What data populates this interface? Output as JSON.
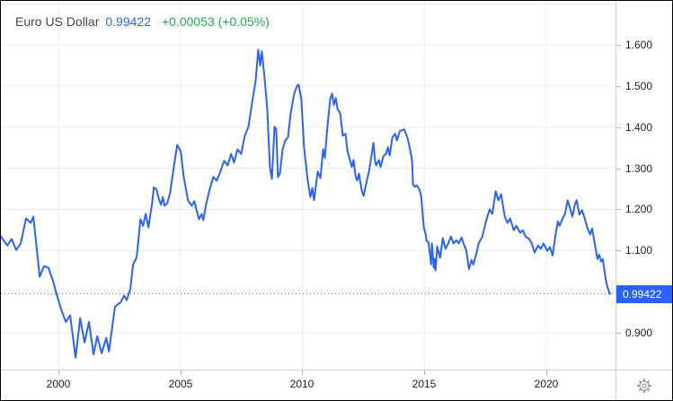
{
  "header": {
    "symbol": "Euro US Dollar",
    "price": "0.99422",
    "change": "+0.00053 (+0.05%)"
  },
  "colors": {
    "line_blue": "#2962FF",
    "price_text_blue": "#2962FF",
    "positive_green": "#22A94E",
    "grid": "#ECECEC",
    "axis_line": "#D1D1D1",
    "tick": "#B2B2B2",
    "axis_text": "#1b1f27",
    "badge_bg": "#2962FF",
    "badge_text": "#FFFFFF",
    "gear_gray": "#A0A3A8",
    "border_black": "#000000"
  },
  "icons": {
    "settings": "gear-icon"
  },
  "chart_data": {
    "type": "line",
    "title": "Euro US Dollar",
    "xlabel": "",
    "ylabel": "",
    "legend": "none",
    "grid": "on",
    "xlim": [
      1997.64,
      2022.84
    ],
    "ylim": [
      0.81,
      1.7074
    ],
    "grid_x": [
      2000,
      2005,
      2010,
      2015,
      2020
    ],
    "grid_y": [
      0.9,
      1.0,
      1.1,
      1.2,
      1.3,
      1.4,
      1.5,
      1.6,
      1.7
    ],
    "x_ticks": [
      {
        "label": "2000",
        "value": 2000
      },
      {
        "label": "2005",
        "value": 2005
      },
      {
        "label": "2010",
        "value": 2010
      },
      {
        "label": "2015",
        "value": 2015
      },
      {
        "label": "2020",
        "value": 2020
      }
    ],
    "y_ticks": [
      {
        "label": "1.600",
        "value": 1.6
      },
      {
        "label": "1.500",
        "value": 1.5
      },
      {
        "label": "1.400",
        "value": 1.4
      },
      {
        "label": "1.300",
        "value": 1.3
      },
      {
        "label": "1.200",
        "value": 1.2
      },
      {
        "label": "1.100",
        "value": 1.1
      },
      {
        "label": "0.900",
        "value": 0.9
      }
    ],
    "price_marker": {
      "label": "0.99422",
      "value": 0.99422,
      "style": "dotted"
    },
    "series": [
      {
        "name": "EUR/USD",
        "color": "#2962FF",
        "points": [
          [
            1997.64,
            1.134
          ],
          [
            1997.9,
            1.112
          ],
          [
            1998.08,
            1.128
          ],
          [
            1998.27,
            1.101
          ],
          [
            1998.45,
            1.117
          ],
          [
            1998.67,
            1.178
          ],
          [
            1998.86,
            1.167
          ],
          [
            1998.97,
            1.182
          ],
          [
            1999.23,
            1.036
          ],
          [
            1999.41,
            1.062
          ],
          [
            1999.59,
            1.058
          ],
          [
            1999.78,
            1.025
          ],
          [
            1999.93,
            0.992
          ],
          [
            2000.11,
            0.957
          ],
          [
            2000.3,
            0.926
          ],
          [
            2000.48,
            0.942
          ],
          [
            2000.7,
            0.839
          ],
          [
            2000.89,
            0.935
          ],
          [
            2001.07,
            0.876
          ],
          [
            2001.25,
            0.926
          ],
          [
            2001.44,
            0.847
          ],
          [
            2001.59,
            0.891
          ],
          [
            2001.77,
            0.85
          ],
          [
            2001.96,
            0.887
          ],
          [
            2002.07,
            0.854
          ],
          [
            2002.32,
            0.963
          ],
          [
            2002.55,
            0.974
          ],
          [
            2002.69,
            0.99
          ],
          [
            2002.8,
            0.979
          ],
          [
            2002.95,
            1.007
          ],
          [
            2003.06,
            1.066
          ],
          [
            2003.21,
            1.084
          ],
          [
            2003.36,
            1.176
          ],
          [
            2003.47,
            1.16
          ],
          [
            2003.58,
            1.189
          ],
          [
            2003.69,
            1.156
          ],
          [
            2003.84,
            1.215
          ],
          [
            2003.91,
            1.254
          ],
          [
            2004.02,
            1.248
          ],
          [
            2004.13,
            1.222
          ],
          [
            2004.21,
            1.211
          ],
          [
            2004.28,
            1.23
          ],
          [
            2004.35,
            1.209
          ],
          [
            2004.46,
            1.215
          ],
          [
            2004.58,
            1.241
          ],
          [
            2004.72,
            1.3
          ],
          [
            2004.87,
            1.357
          ],
          [
            2005.02,
            1.34
          ],
          [
            2005.13,
            1.281
          ],
          [
            2005.31,
            1.222
          ],
          [
            2005.46,
            1.209
          ],
          [
            2005.57,
            1.22
          ],
          [
            2005.76,
            1.176
          ],
          [
            2005.87,
            1.189
          ],
          [
            2005.94,
            1.174
          ],
          [
            2006.05,
            1.211
          ],
          [
            2006.2,
            1.248
          ],
          [
            2006.35,
            1.279
          ],
          [
            2006.49,
            1.27
          ],
          [
            2006.64,
            1.292
          ],
          [
            2006.79,
            1.318
          ],
          [
            2006.94,
            1.307
          ],
          [
            2007.08,
            1.335
          ],
          [
            2007.2,
            1.314
          ],
          [
            2007.34,
            1.346
          ],
          [
            2007.49,
            1.335
          ],
          [
            2007.64,
            1.379
          ],
          [
            2007.79,
            1.401
          ],
          [
            2007.93,
            1.456
          ],
          [
            2008.08,
            1.511
          ],
          [
            2008.19,
            1.589
          ],
          [
            2008.27,
            1.55
          ],
          [
            2008.34,
            1.585
          ],
          [
            2008.45,
            1.521
          ],
          [
            2008.56,
            1.445
          ],
          [
            2008.67,
            1.303
          ],
          [
            2008.75,
            1.274
          ],
          [
            2008.86,
            1.401
          ],
          [
            2008.93,
            1.395
          ],
          [
            2009.0,
            1.279
          ],
          [
            2009.08,
            1.287
          ],
          [
            2009.19,
            1.346
          ],
          [
            2009.3,
            1.368
          ],
          [
            2009.41,
            1.375
          ],
          [
            2009.52,
            1.434
          ],
          [
            2009.67,
            1.482
          ],
          [
            2009.78,
            1.5
          ],
          [
            2009.85,
            1.504
          ],
          [
            2009.96,
            1.467
          ],
          [
            2010.07,
            1.351
          ],
          [
            2010.22,
            1.27
          ],
          [
            2010.33,
            1.23
          ],
          [
            2010.41,
            1.252
          ],
          [
            2010.48,
            1.222
          ],
          [
            2010.63,
            1.292
          ],
          [
            2010.74,
            1.276
          ],
          [
            2010.85,
            1.346
          ],
          [
            2010.92,
            1.325
          ],
          [
            2011.03,
            1.401
          ],
          [
            2011.14,
            1.467
          ],
          [
            2011.22,
            1.482
          ],
          [
            2011.29,
            1.454
          ],
          [
            2011.37,
            1.471
          ],
          [
            2011.44,
            1.445
          ],
          [
            2011.55,
            1.434
          ],
          [
            2011.66,
            1.379
          ],
          [
            2011.77,
            1.384
          ],
          [
            2011.85,
            1.342
          ],
          [
            2011.96,
            1.318
          ],
          [
            2012.03,
            1.303
          ],
          [
            2012.1,
            1.32
          ],
          [
            2012.18,
            1.281
          ],
          [
            2012.25,
            1.27
          ],
          [
            2012.32,
            1.287
          ],
          [
            2012.43,
            1.248
          ],
          [
            2012.51,
            1.233
          ],
          [
            2012.66,
            1.274
          ],
          [
            2012.73,
            1.292
          ],
          [
            2012.8,
            1.318
          ],
          [
            2012.92,
            1.362
          ],
          [
            2012.99,
            1.314
          ],
          [
            2013.03,
            1.307
          ],
          [
            2013.14,
            1.32
          ],
          [
            2013.21,
            1.303
          ],
          [
            2013.32,
            1.329
          ],
          [
            2013.43,
            1.335
          ],
          [
            2013.51,
            1.351
          ],
          [
            2013.58,
            1.331
          ],
          [
            2013.69,
            1.375
          ],
          [
            2013.8,
            1.384
          ],
          [
            2013.88,
            1.368
          ],
          [
            2013.99,
            1.39
          ],
          [
            2014.17,
            1.395
          ],
          [
            2014.25,
            1.384
          ],
          [
            2014.32,
            1.373
          ],
          [
            2014.43,
            1.342
          ],
          [
            2014.5,
            1.318
          ],
          [
            2014.54,
            1.259
          ],
          [
            2014.61,
            1.255
          ],
          [
            2014.69,
            1.259
          ],
          [
            2014.8,
            1.248
          ],
          [
            2014.87,
            1.233
          ],
          [
            2014.91,
            1.204
          ],
          [
            2014.98,
            1.156
          ],
          [
            2015.06,
            1.139
          ],
          [
            2015.09,
            1.123
          ],
          [
            2015.17,
            1.121
          ],
          [
            2015.24,
            1.088
          ],
          [
            2015.28,
            1.066
          ],
          [
            2015.31,
            1.117
          ],
          [
            2015.39,
            1.058
          ],
          [
            2015.42,
            1.079
          ],
          [
            2015.46,
            1.051
          ],
          [
            2015.53,
            1.11
          ],
          [
            2015.65,
            1.082
          ],
          [
            2015.76,
            1.13
          ],
          [
            2015.87,
            1.104
          ],
          [
            2015.98,
            1.117
          ],
          [
            2016.09,
            1.134
          ],
          [
            2016.2,
            1.117
          ],
          [
            2016.31,
            1.125
          ],
          [
            2016.42,
            1.117
          ],
          [
            2016.53,
            1.132
          ],
          [
            2016.64,
            1.112
          ],
          [
            2016.72,
            1.101
          ],
          [
            2016.83,
            1.055
          ],
          [
            2016.94,
            1.077
          ],
          [
            2017.01,
            1.066
          ],
          [
            2017.12,
            1.088
          ],
          [
            2017.23,
            1.117
          ],
          [
            2017.38,
            1.134
          ],
          [
            2017.53,
            1.171
          ],
          [
            2017.68,
            1.2
          ],
          [
            2017.79,
            1.189
          ],
          [
            2017.93,
            1.244
          ],
          [
            2018.04,
            1.222
          ],
          [
            2018.15,
            1.237
          ],
          [
            2018.3,
            1.182
          ],
          [
            2018.41,
            1.167
          ],
          [
            2018.52,
            1.178
          ],
          [
            2018.67,
            1.149
          ],
          [
            2018.78,
            1.16
          ],
          [
            2018.93,
            1.143
          ],
          [
            2019.04,
            1.149
          ],
          [
            2019.15,
            1.134
          ],
          [
            2019.3,
            1.128
          ],
          [
            2019.41,
            1.117
          ],
          [
            2019.52,
            1.095
          ],
          [
            2019.67,
            1.112
          ],
          [
            2019.78,
            1.104
          ],
          [
            2019.89,
            1.117
          ],
          [
            2020.04,
            1.099
          ],
          [
            2020.15,
            1.108
          ],
          [
            2020.26,
            1.088
          ],
          [
            2020.37,
            1.134
          ],
          [
            2020.48,
            1.171
          ],
          [
            2020.55,
            1.16
          ],
          [
            2020.66,
            1.176
          ],
          [
            2020.77,
            1.189
          ],
          [
            2020.88,
            1.222
          ],
          [
            2020.99,
            1.2
          ],
          [
            2021.07,
            1.182
          ],
          [
            2021.18,
            1.213
          ],
          [
            2021.25,
            1.222
          ],
          [
            2021.36,
            1.187
          ],
          [
            2021.47,
            1.198
          ],
          [
            2021.58,
            1.178
          ],
          [
            2021.69,
            1.154
          ],
          [
            2021.8,
            1.139
          ],
          [
            2021.88,
            1.154
          ],
          [
            2021.99,
            1.117
          ],
          [
            2022.1,
            1.079
          ],
          [
            2022.17,
            1.09
          ],
          [
            2022.25,
            1.073
          ],
          [
            2022.32,
            1.079
          ],
          [
            2022.43,
            1.033
          ],
          [
            2022.5,
            1.012
          ],
          [
            2022.61,
            0.99422
          ]
        ]
      }
    ]
  }
}
